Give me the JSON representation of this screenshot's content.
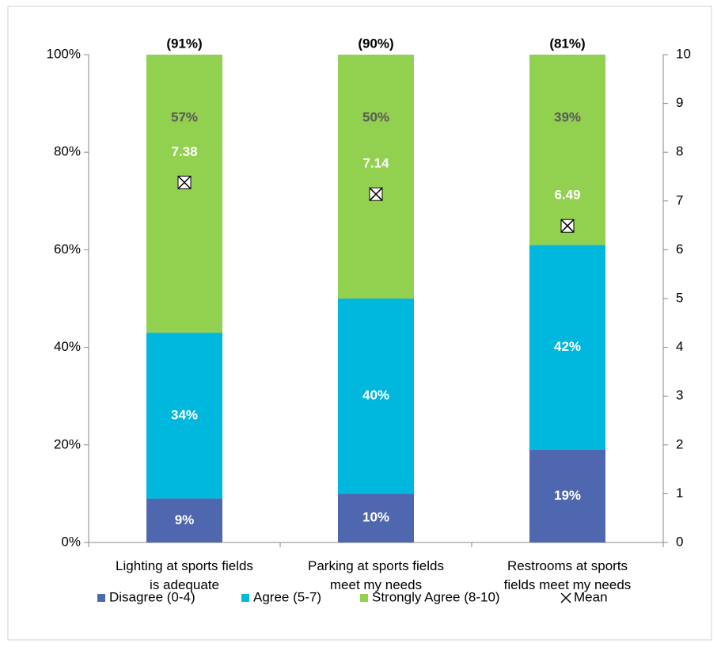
{
  "chart_data": {
    "type": "stacked_bar",
    "categories": [
      [
        "Lighting at sports fields",
        "is adequate"
      ],
      [
        "Parking at sports fields",
        "meet my needs"
      ],
      [
        "Restrooms at sports",
        "fields meet my needs"
      ]
    ],
    "series": [
      {
        "name": "Disagree (0-4)",
        "color": "#4f67ae",
        "label_color": "#ffffff",
        "values": [
          9,
          10,
          19
        ],
        "value_labels": [
          "9%",
          "10%",
          "19%"
        ]
      },
      {
        "name": "Agree (5-7)",
        "color": "#00b7de",
        "label_color": "#ffffff",
        "values": [
          34,
          40,
          42
        ],
        "value_labels": [
          "34%",
          "40%",
          "42%"
        ]
      },
      {
        "name": "Strongly Agree (8-10)",
        "color": "#92d050",
        "label_color": "#595959",
        "values": [
          57,
          50,
          39
        ],
        "value_labels": [
          "57%",
          "50%",
          "39%"
        ]
      },
      {
        "name": "Mean",
        "axis": "y2",
        "marker": "x",
        "label_color": "#ffffff",
        "values": [
          7.38,
          7.14,
          6.49
        ]
      }
    ],
    "annotations": [
      "(91%)",
      "(90%)",
      "(81%)"
    ],
    "ylim": [
      0,
      100
    ],
    "yticks": [
      {
        "value": 0,
        "label": "0%"
      },
      {
        "value": 20,
        "label": "20%"
      },
      {
        "value": 40,
        "label": "40%"
      },
      {
        "value": 60,
        "label": "60%"
      },
      {
        "value": 80,
        "label": "80%"
      },
      {
        "value": 100,
        "label": "100%"
      }
    ],
    "y2lim": [
      0,
      10
    ],
    "y2ticks": [
      0,
      1,
      2,
      3,
      4,
      5,
      6,
      7,
      8,
      9,
      10
    ],
    "legend": "bottom"
  }
}
